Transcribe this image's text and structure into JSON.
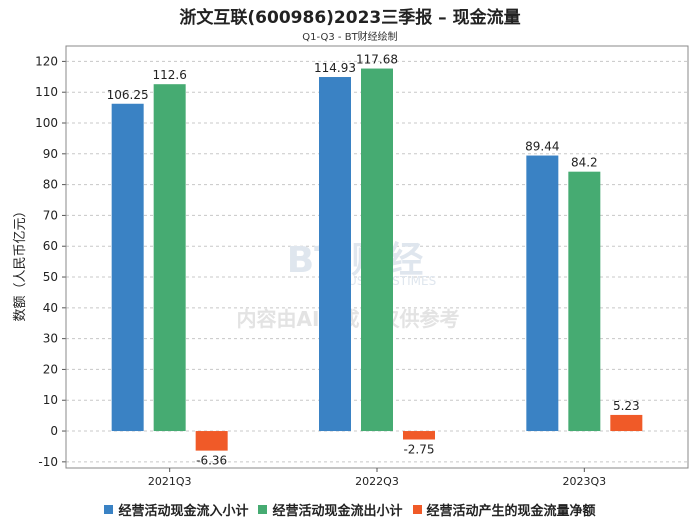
{
  "title": "浙文互联(600986)2023三季报 – 现金流量",
  "subtitle": "Q1-Q3 - BT财经绘制",
  "watermark": {
    "brand": "BT 财经",
    "brand_en": "BUSINESSTIMES",
    "note": "内容由AI生成，仅供参考"
  },
  "chart_data": {
    "type": "bar",
    "categories": [
      "2021Q3",
      "2022Q3",
      "2023Q3"
    ],
    "series": [
      {
        "name": "经营活动现金流入小计",
        "color": "#3a82c4",
        "values": [
          106.25,
          114.93,
          89.44
        ],
        "labels": [
          "106.25",
          "114.93",
          "89.44"
        ]
      },
      {
        "name": "经营活动现金流出小计",
        "color": "#46ab72",
        "values": [
          112.6,
          117.68,
          84.2
        ],
        "labels": [
          "112.6",
          "117.68",
          "84.2"
        ]
      },
      {
        "name": "经营活动产生的现金流量净额",
        "color": "#f05a28",
        "values": [
          -6.36,
          -2.75,
          5.23
        ],
        "labels": [
          "-6.36",
          "-2.75",
          "5.23"
        ]
      }
    ],
    "ylabel": "数额（人民币亿元）",
    "xlabel": "",
    "ylim": [
      -12,
      125
    ],
    "yticks": [
      -10,
      0,
      10,
      20,
      30,
      40,
      50,
      60,
      70,
      80,
      90,
      100,
      110,
      120
    ],
    "grid": true,
    "legend_position": "bottom"
  }
}
